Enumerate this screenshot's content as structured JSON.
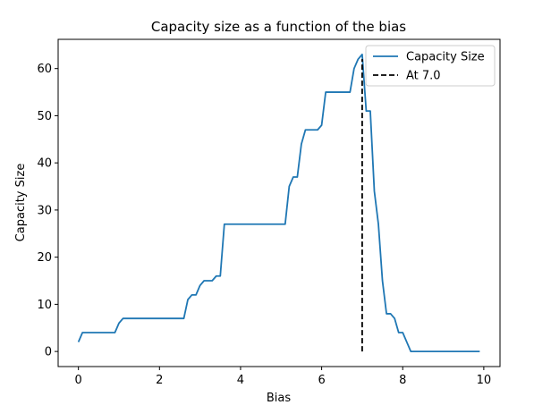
{
  "chart_data": {
    "type": "line",
    "title": "Capacity size as a function of the bias",
    "xlabel": "Bias",
    "ylabel": "Capacity Size",
    "xlim": [
      -0.5,
      10.4
    ],
    "ylim": [
      -3.2,
      66.2
    ],
    "xticks": [
      0,
      2,
      4,
      6,
      8,
      10
    ],
    "yticks": [
      0,
      10,
      20,
      30,
      40,
      50,
      60
    ],
    "grid": false,
    "legend_position": "top-right",
    "series": [
      {
        "name": "Capacity Size",
        "color": "#1f77b4",
        "style": "solid",
        "x": [
          0.0,
          0.1,
          0.9,
          1.0,
          1.1,
          2.6,
          2.7,
          2.8,
          2.9,
          3.0,
          3.1,
          3.3,
          3.4,
          3.5,
          3.6,
          5.1,
          5.2,
          5.3,
          5.4,
          5.5,
          5.6,
          5.9,
          6.0,
          6.1,
          6.7,
          6.8,
          6.9,
          7.0,
          7.1,
          7.2,
          7.3,
          7.4,
          7.5,
          7.6,
          7.7,
          7.8,
          7.9,
          8.0,
          8.1,
          8.2,
          9.9
        ],
        "y": [
          2,
          4,
          4,
          6,
          7,
          7,
          11,
          12,
          12,
          14,
          15,
          15,
          16,
          16,
          27,
          27,
          35,
          37,
          37,
          44,
          47,
          47,
          48,
          55,
          55,
          60,
          62,
          63,
          51,
          51,
          34,
          27,
          15,
          8,
          8,
          7,
          4,
          4,
          2,
          0,
          0
        ]
      },
      {
        "name": "At 7.0",
        "color": "#000000",
        "style": "dashed",
        "x": [
          7.0,
          7.0
        ],
        "y": [
          0,
          62
        ]
      }
    ]
  }
}
